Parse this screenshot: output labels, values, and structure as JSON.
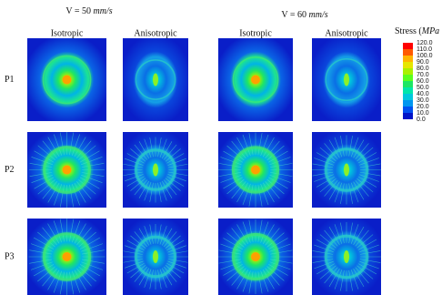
{
  "titles": [
    {
      "prefix": "V = 50",
      "unit": "mm/s"
    },
    {
      "prefix": "V = 60",
      "unit": "mm/s"
    }
  ],
  "columns": [
    "Isotropic",
    "Anisotropic",
    "Isotropic",
    "Anisotropic"
  ],
  "rows": [
    "P1",
    "P2",
    "P3"
  ],
  "legend": {
    "title": "Stress (",
    "unit": "MPa",
    "labels": [
      "120.0",
      "110.0",
      "100.0",
      "90.0",
      "80.0",
      "70.0",
      "60.0",
      "50.0",
      "40.0",
      "30.0",
      "20.0",
      "10.0",
      "0.0"
    ],
    "colors": [
      "#ff0000",
      "#ff5a00",
      "#ffb400",
      "#e6e600",
      "#aaf000",
      "#5aff1e",
      "#1ee664",
      "#00e6aa",
      "#00c8dc",
      "#0096f0",
      "#0050f0",
      "#0014c8"
    ]
  }
}
